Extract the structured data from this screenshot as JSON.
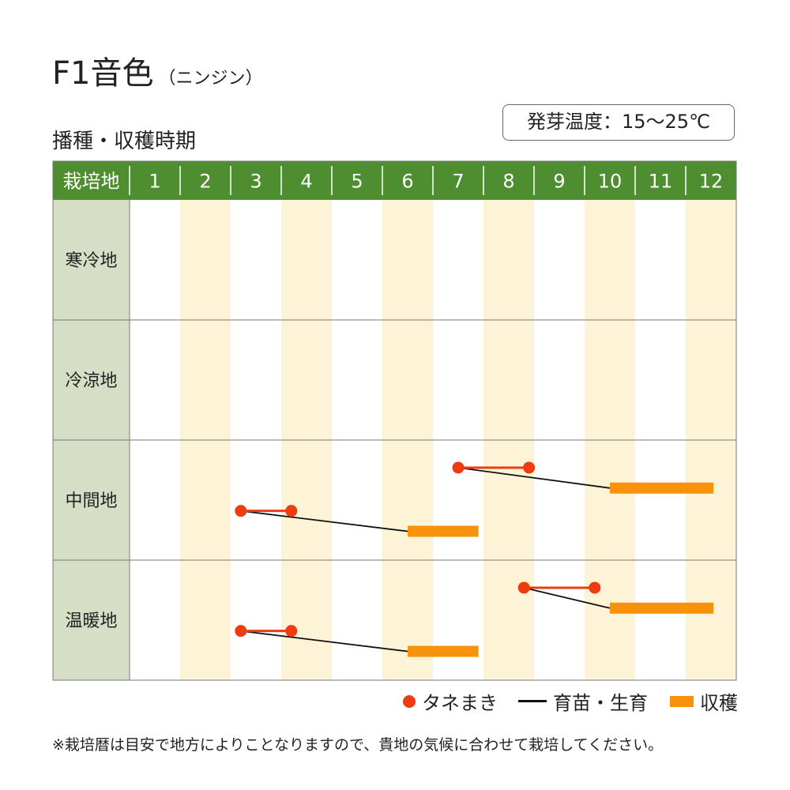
{
  "header": {
    "title": "F1音色",
    "title_sub": "（ニンジン）",
    "section": "播種・収穫時期",
    "badge": "発芽温度：15～25℃"
  },
  "colors": {
    "header_green": "#4e8e30",
    "region_bg": "#d6dfc5",
    "stripe": "#fdf3d6",
    "sow": "#ee3b10",
    "harvest": "#f7920a",
    "grow": "#111111",
    "grid": "#777777"
  },
  "legend": {
    "sow": "タネまき",
    "grow": "育苗・生育",
    "harvest": "収穫"
  },
  "note": "※栽培暦は目安で地方によりことなりますので、貴地の気候に合わせて栽培してください。",
  "chart_data": {
    "type": "table",
    "corner_label": "栽培地",
    "months": [
      "1",
      "2",
      "3",
      "4",
      "5",
      "6",
      "7",
      "8",
      "9",
      "10",
      "11",
      "12"
    ],
    "regions": [
      {
        "name": "寒冷地",
        "schedules": []
      },
      {
        "name": "冷涼地",
        "schedules": []
      },
      {
        "name": "中間地",
        "schedules": [
          {
            "sow": [
              7.5,
              8.9
            ],
            "harvest": [
              10.5,
              12.55
            ]
          },
          {
            "sow": [
              3.2,
              4.2
            ],
            "harvest": [
              6.5,
              7.9
            ]
          }
        ]
      },
      {
        "name": "温暖地",
        "schedules": [
          {
            "sow": [
              8.8,
              10.2
            ],
            "harvest": [
              10.5,
              12.55
            ]
          },
          {
            "sow": [
              3.2,
              4.2
            ],
            "harvest": [
              6.5,
              7.9
            ]
          }
        ]
      }
    ]
  }
}
